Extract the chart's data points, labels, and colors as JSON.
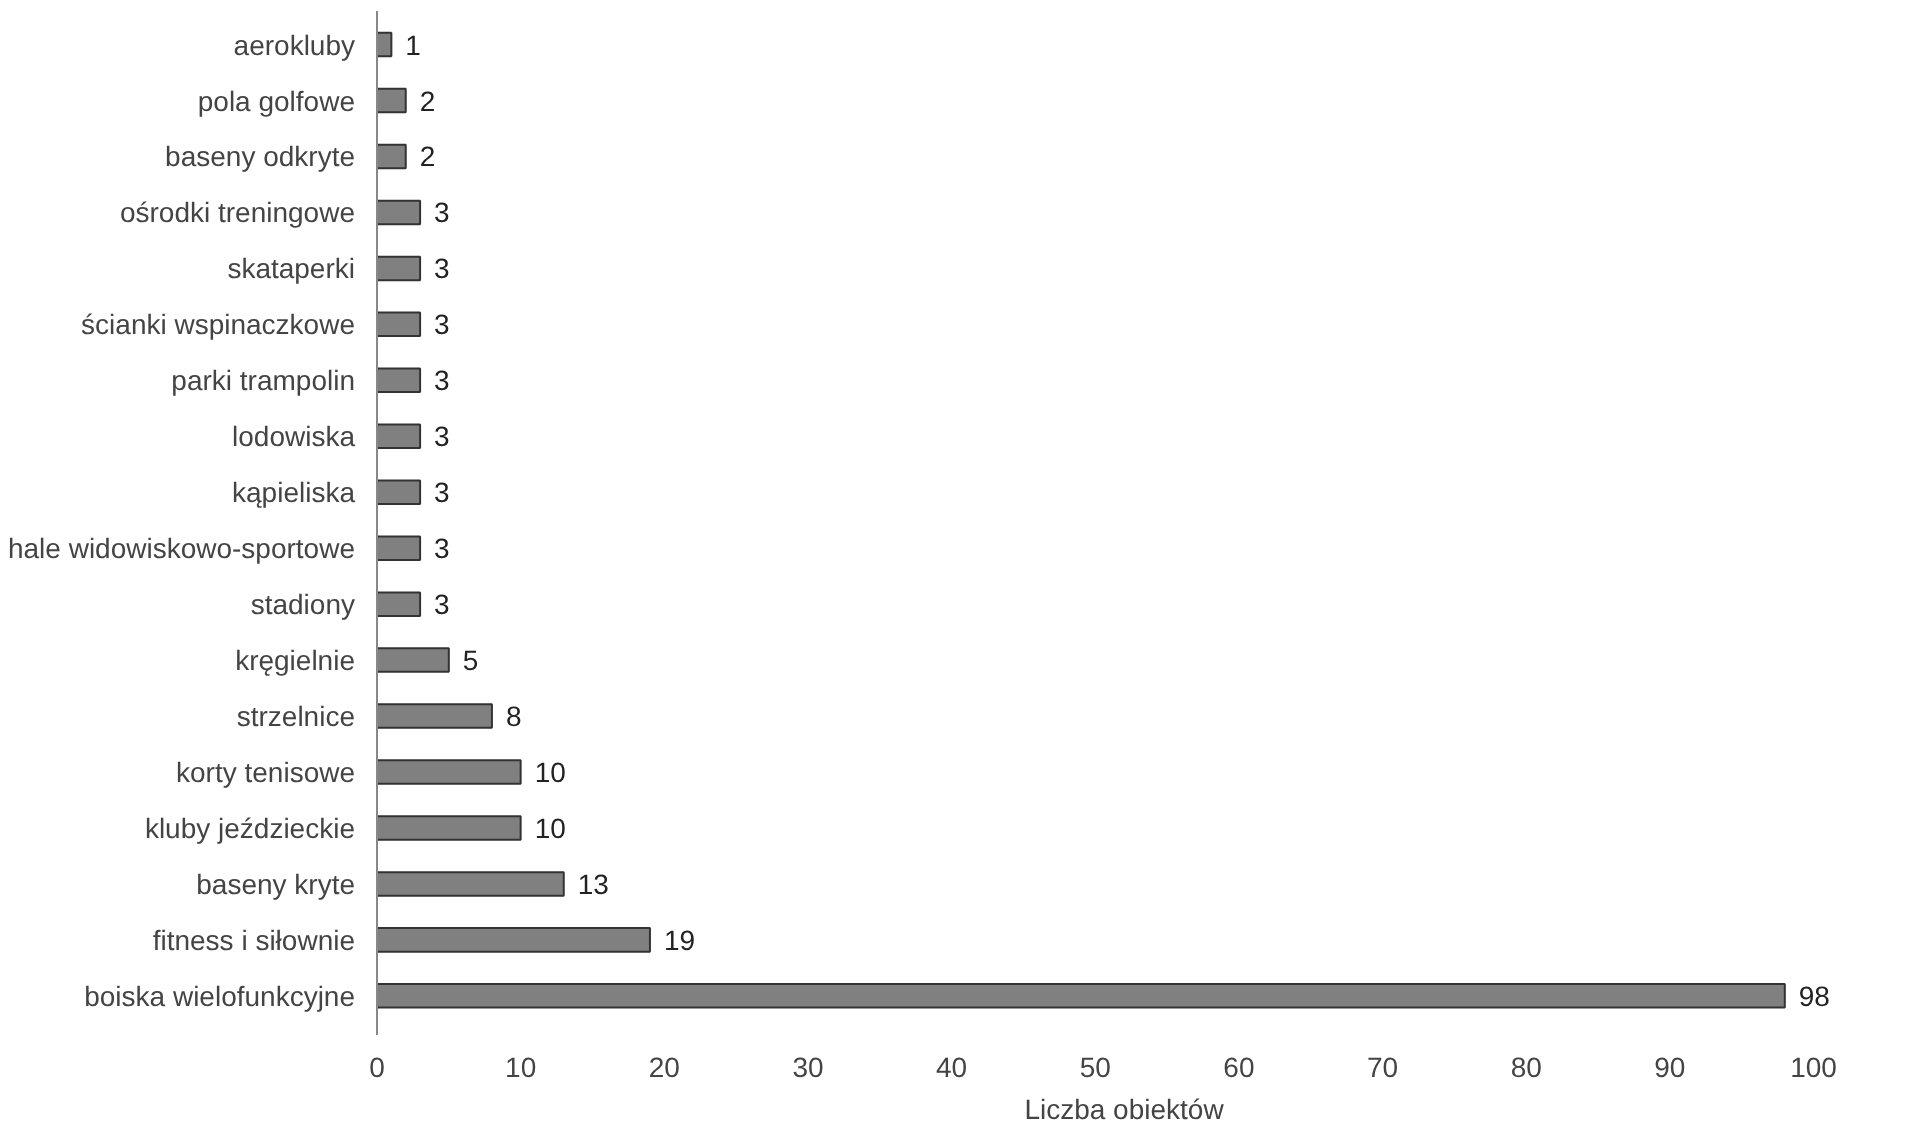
{
  "chart_data": {
    "type": "bar",
    "orientation": "horizontal",
    "xlabel": "Liczba obiektów",
    "categories": [
      "aerokluby",
      "pola golfowe",
      "baseny odkryte",
      "ośrodki treningowe",
      "skataperki",
      "ścianki wspinaczkowe",
      "parki trampolin",
      "lodowiska",
      "kąpieliska",
      "hale widowiskowo-sportowe",
      "stadiony",
      "kręgielnie",
      "strzelnice",
      "korty tenisowe",
      "kluby jeździeckie",
      "baseny kryte",
      "fitness i siłownie",
      "boiska wielofunkcyjne"
    ],
    "values": [
      1,
      2,
      2,
      3,
      3,
      3,
      3,
      3,
      3,
      3,
      3,
      5,
      8,
      10,
      10,
      13,
      19,
      98
    ],
    "color": "#808080",
    "xlim": [
      0,
      100
    ],
    "xticks": [
      0,
      10,
      20,
      30,
      40,
      50,
      60,
      70,
      80,
      90,
      100
    ],
    "grid": false,
    "data_labels": true
  }
}
